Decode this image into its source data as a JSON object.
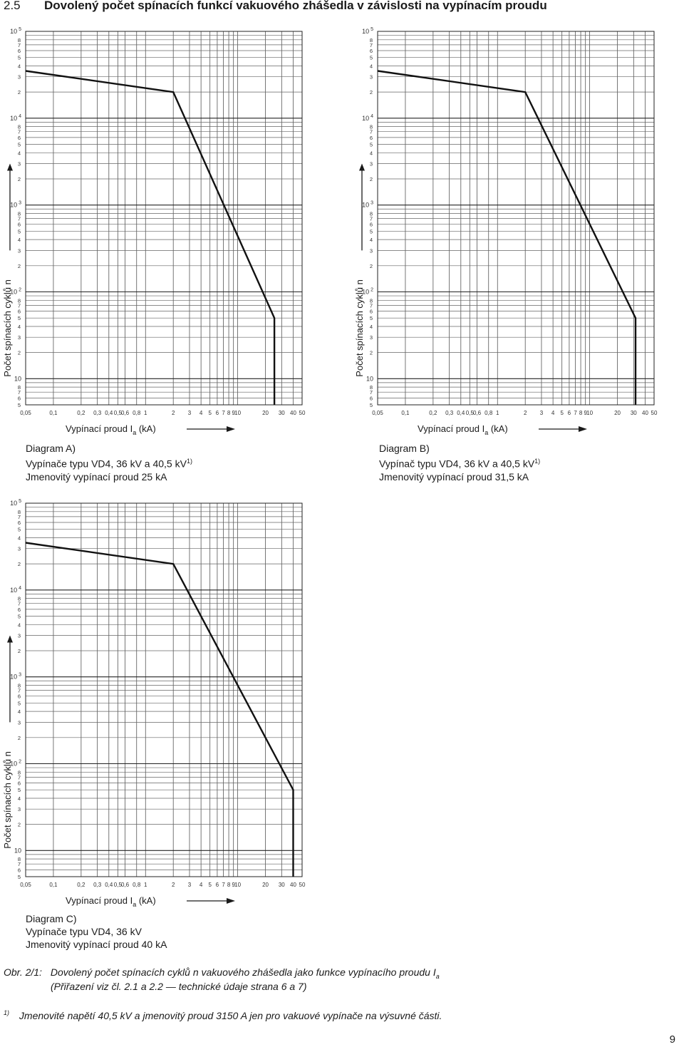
{
  "section": {
    "number": "2.5",
    "title": "Dovolený počet spínacích funkcí vakuového zhášedla v závislosti na vypínacím proudu"
  },
  "axis_text": {
    "ylabel": "Počet spínacích cyklů n",
    "xlabel_prefix": "Vypínací proud",
    "xlabel_symbol": "I",
    "xlabel_sub": "a",
    "xlabel_unit": "(kA)",
    "x_ticks": [
      "0,05",
      "0,1",
      "0,2",
      "0,3",
      "0,4",
      "0,5",
      "0,6",
      "0,8",
      "1",
      "2",
      "3",
      "4",
      "5",
      "6",
      "7",
      "8",
      "9",
      "10",
      "20",
      "30",
      "40",
      "50"
    ],
    "y_decade_base": "10",
    "y_decade_exps": [
      "",
      "2",
      "3",
      "4",
      "5"
    ],
    "y_minor": [
      "2",
      "3",
      "4",
      "5",
      "6",
      "7",
      "8"
    ]
  },
  "chart_data": [
    {
      "type": "line",
      "x_scale": "log",
      "y_scale": "log",
      "xlim": [
        0.05,
        50
      ],
      "ylim": [
        5,
        100000
      ],
      "points": [
        [
          0.05,
          35000
        ],
        [
          2.0,
          20000
        ],
        [
          25,
          50
        ],
        [
          25,
          5
        ]
      ],
      "caption": [
        "Diagram A)",
        "Vypínače typu VD4, 36 kV a 40,5 kV",
        "Jmenovitý vypínací proud 25 kA"
      ],
      "footnote_mark": "1)"
    },
    {
      "type": "line",
      "x_scale": "log",
      "y_scale": "log",
      "xlim": [
        0.05,
        50
      ],
      "ylim": [
        5,
        100000
      ],
      "points": [
        [
          0.05,
          35000
        ],
        [
          2.0,
          20000
        ],
        [
          31.5,
          50
        ],
        [
          31.5,
          5
        ]
      ],
      "caption": [
        "Diagram B)",
        "Vypínač typu VD4, 36 kV a 40,5 kV",
        "Jmenovitý vypínací proud 31,5 kA"
      ],
      "footnote_mark": "1)"
    },
    {
      "type": "line",
      "x_scale": "log",
      "y_scale": "log",
      "xlim": [
        0.05,
        50
      ],
      "ylim": [
        5,
        100000
      ],
      "points": [
        [
          0.05,
          35000
        ],
        [
          2.0,
          20000
        ],
        [
          40,
          50
        ],
        [
          40,
          5
        ]
      ],
      "caption": [
        "Diagram C)",
        "Vypínače typu VD4, 36 kV",
        "Jmenovitý vypínací proud 40 kA"
      ],
      "footnote_mark": ""
    }
  ],
  "figure": {
    "label": "Obr. 2/1:",
    "text": "Dovolený počet spínacích cyklů  n  vakuového zhášedla jako funkce vypínacího proudu I",
    "sub": "a",
    "line2": "(Přiřazení viz čl. 2.1 a 2.2 — technické údaje strana 6 a 7)"
  },
  "footnote": {
    "mark": "1)",
    "text": "Jmenovité napětí 40,5 kV a jmenovitý proud 3150 A jen pro vakuové vypínače na výsuvné části."
  },
  "page_number": "9"
}
